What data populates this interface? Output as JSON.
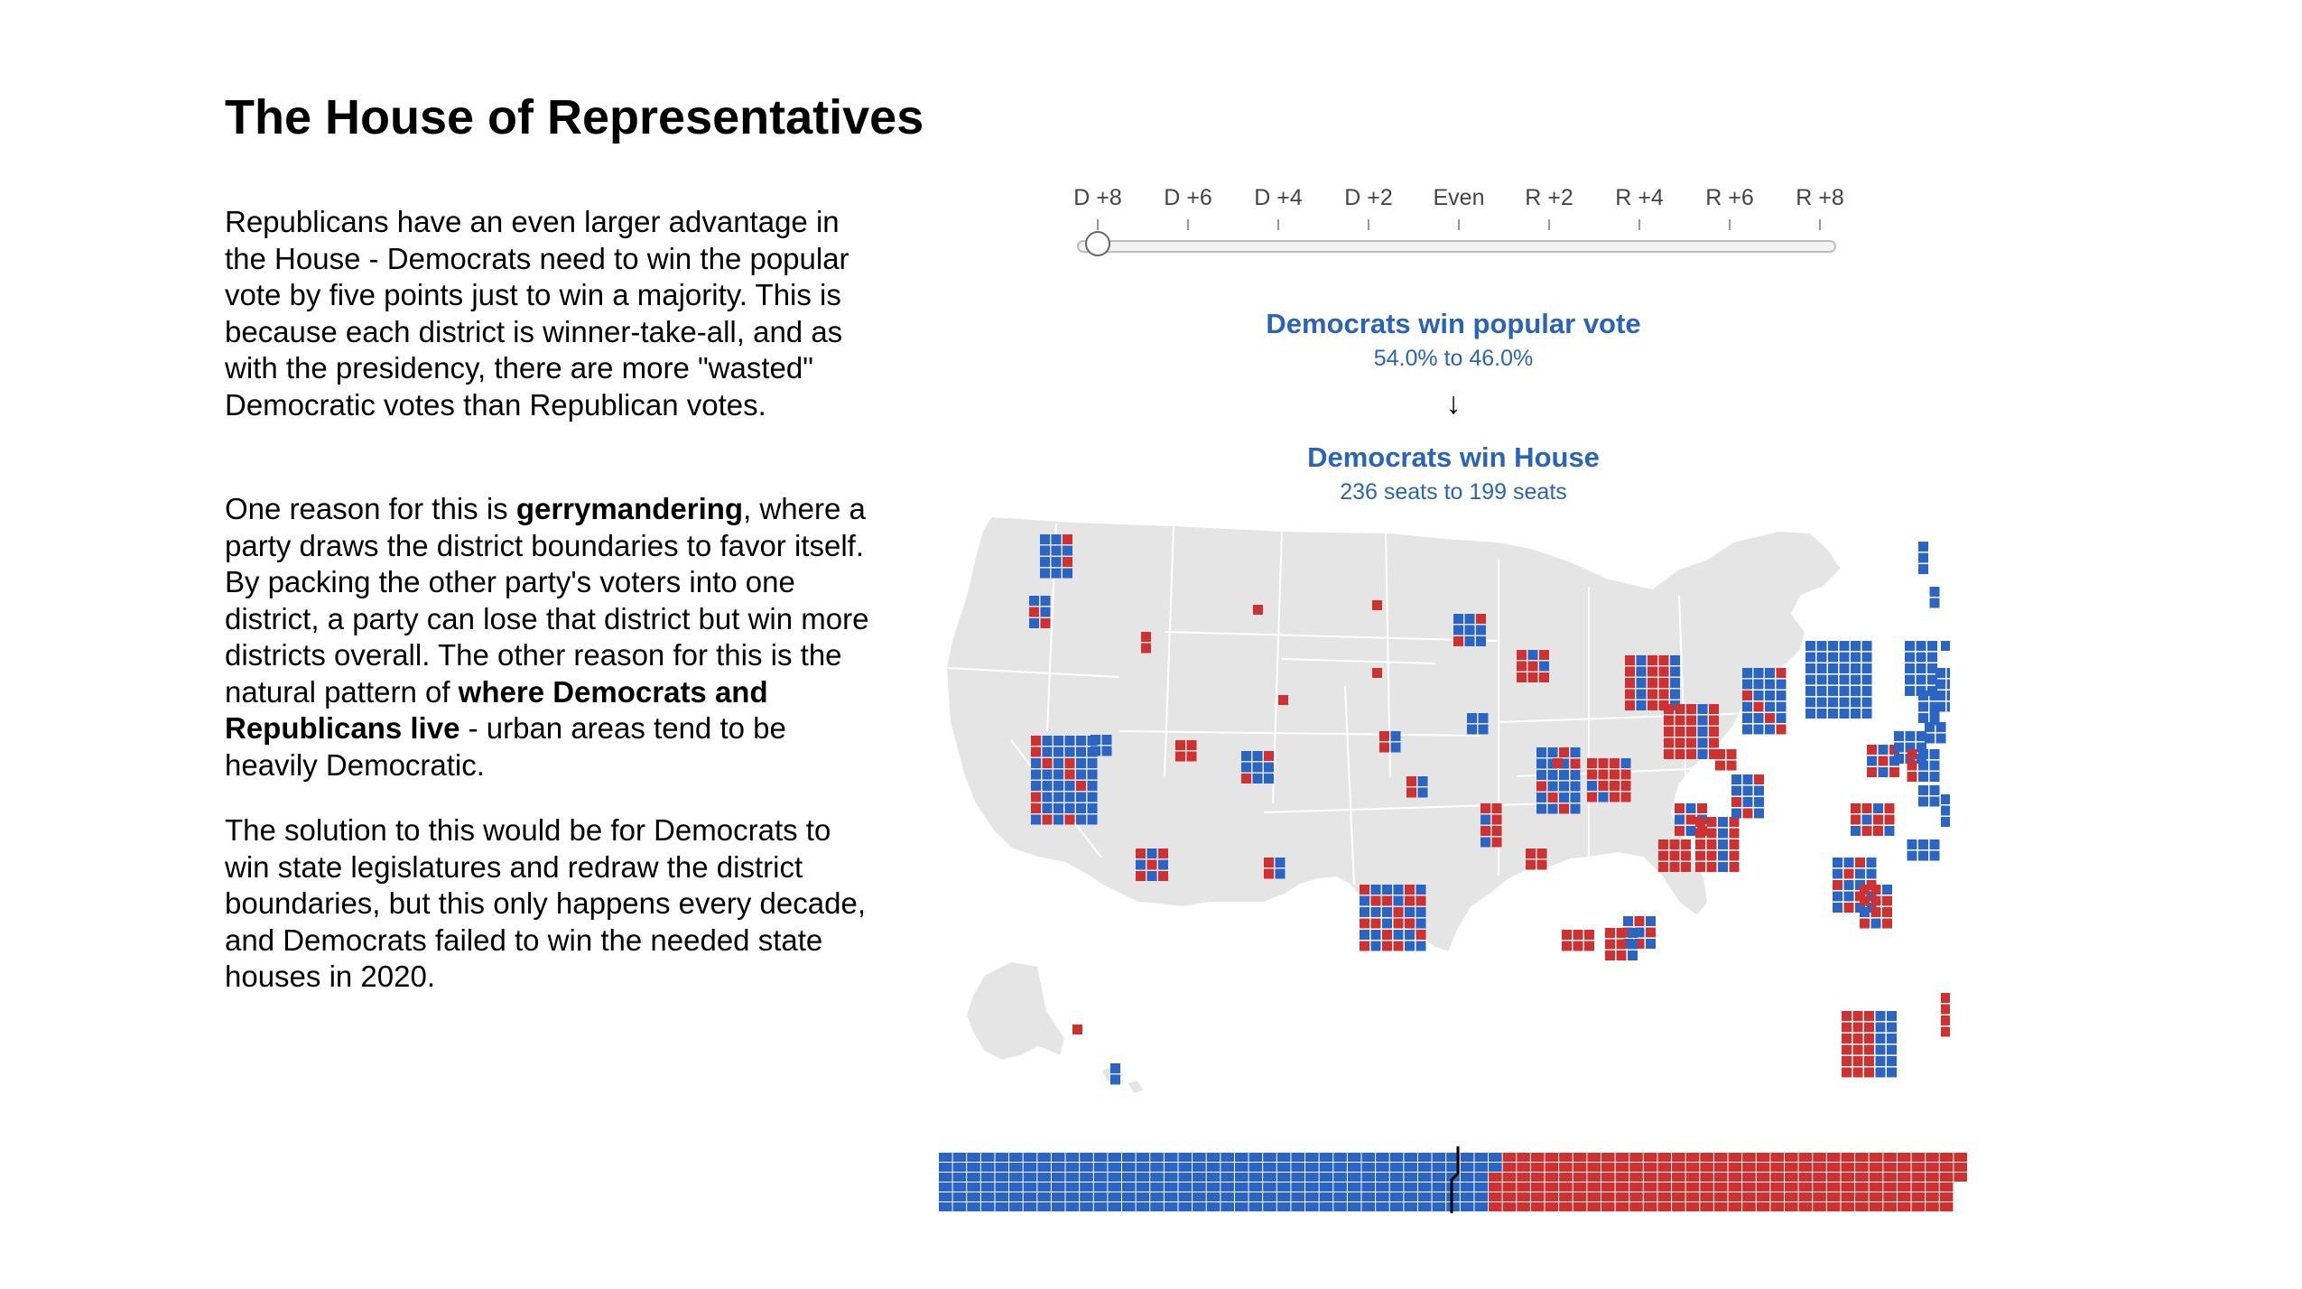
{
  "title": "The House of Representatives",
  "paragraphs": {
    "p1": "Republicans have an even larger advantage in the House - Democrats need to win the popular vote by five points just to win a majority. This is because each district is winner-take-all, and as with the presidency, there are more \"wasted\" Democratic votes than Republican votes.",
    "p2_a": "One reason for this is ",
    "p2_b": "gerrymandering",
    "p2_c": ", where a party draws the district boundaries to favor itself. By packing the other party's voters into one district, a party can lose that district but win more districts overall. The other reason for this is the natural pattern of ",
    "p2_d": "where Democrats and Republicans live",
    "p2_e": " - urban areas tend to be heavily Democratic.",
    "p3": "The solution to this would be for Democrats to win state legislatures and redraw the district boundaries, but this only happens every decade, and Democrats failed to win the needed state houses in 2020."
  },
  "slider": {
    "labels": [
      "D +8",
      "D +6",
      "D +4",
      "D +2",
      "Even",
      "R +2",
      "R +4",
      "R +6",
      "R +8"
    ],
    "selected": "D +8"
  },
  "result": {
    "popular_heading": "Democrats win popular vote",
    "popular_detail": "54.0% to 46.0%",
    "arrow": "↓",
    "house_heading": "Democrats win House",
    "house_detail": "236 seats to 199 seats"
  },
  "seats": {
    "democrat": 236,
    "republican": 199,
    "total": 435
  },
  "colors": {
    "democrat": "#2a64c4",
    "republican": "#cf3030",
    "map_fill": "#e5e5e5",
    "map_border": "#ffffff",
    "text_blue": "#2a64b8"
  }
}
